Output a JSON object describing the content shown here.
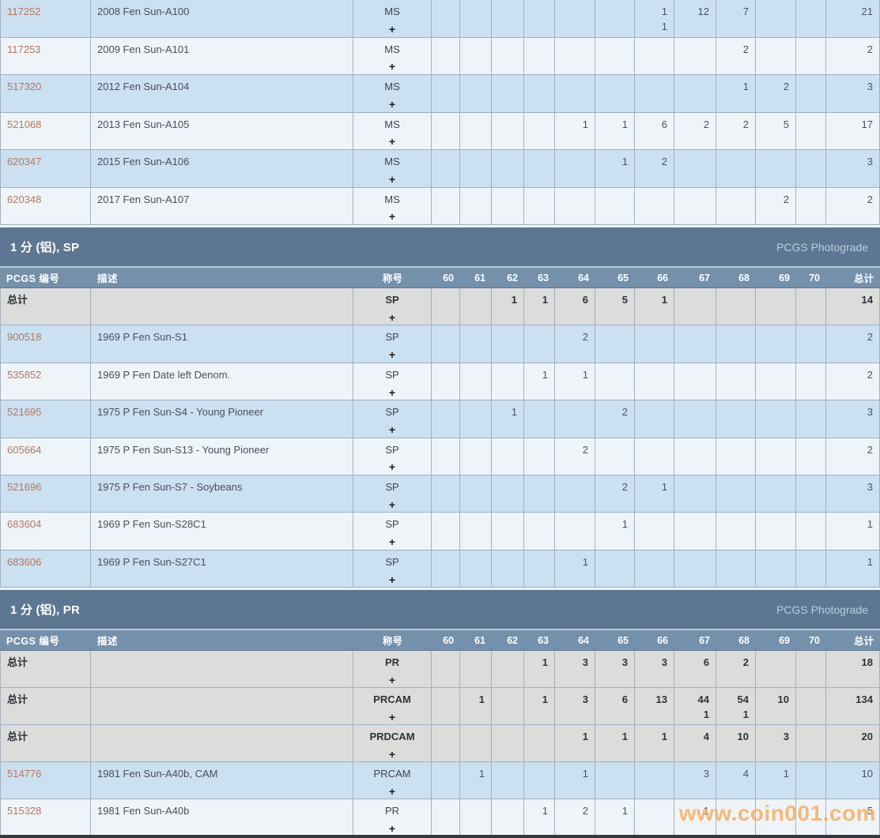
{
  "plus_symbol": "+",
  "watermark": "www.coin001.com",
  "colors": {
    "section_band": "#5d7691",
    "column_header": "#7590ab",
    "row_blue": "#cbe0f1",
    "row_white": "#eff4f9",
    "row_total": "#dcdcda",
    "pcgs_number_link": "#b5765f",
    "watermark_orange": "#f7ad62",
    "photograde_text": "#b9cfe4"
  },
  "table_header": {
    "id": "PCGS 编号",
    "desc": "描述",
    "designation": "称号",
    "grades": [
      "60",
      "61",
      "62",
      "63",
      "64",
      "65",
      "66",
      "67",
      "68",
      "69",
      "70"
    ],
    "total": "总计"
  },
  "sections": [
    {
      "kind": "continuation",
      "rows": [
        {
          "id": "117252",
          "desc": "2008 Fen Sun-A100",
          "designation": "MS",
          "grades": [
            "",
            "",
            "",
            "",
            "",
            "",
            "1\n1",
            "12",
            "7",
            "",
            ""
          ],
          "total": "21",
          "style": "blue"
        },
        {
          "id": "117253",
          "desc": "2009 Fen Sun-A101",
          "designation": "MS",
          "grades": [
            "",
            "",
            "",
            "",
            "",
            "",
            "",
            "",
            "2",
            "",
            ""
          ],
          "total": "2",
          "style": "white"
        },
        {
          "id": "517320",
          "desc": "2012 Fen Sun-A104",
          "designation": "MS",
          "grades": [
            "",
            "",
            "",
            "",
            "",
            "",
            "",
            "",
            "1",
            "2",
            ""
          ],
          "total": "3",
          "style": "blue"
        },
        {
          "id": "521068",
          "desc": "2013 Fen Sun-A105",
          "designation": "MS",
          "grades": [
            "",
            "",
            "",
            "",
            "1",
            "1",
            "6",
            "2",
            "2",
            "5",
            ""
          ],
          "total": "17",
          "style": "white"
        },
        {
          "id": "620347",
          "desc": "2015 Fen Sun-A106",
          "designation": "MS",
          "grades": [
            "",
            "",
            "",
            "",
            "",
            "1",
            "2",
            "",
            "",
            "",
            ""
          ],
          "total": "3",
          "style": "blue"
        },
        {
          "id": "620348",
          "desc": "2017 Fen Sun-A107",
          "designation": "MS",
          "grades": [
            "",
            "",
            "",
            "",
            "",
            "",
            "",
            "",
            "",
            "2",
            ""
          ],
          "total": "2",
          "style": "white"
        }
      ]
    },
    {
      "kind": "full",
      "title": "1 分 (铝), SP",
      "photograde": "PCGS Photograde",
      "rows": [
        {
          "id": "总计",
          "desc": "",
          "designation": "SP",
          "grades": [
            "",
            "",
            "1",
            "1",
            "6",
            "5",
            "1",
            "",
            "",
            "",
            ""
          ],
          "total": "14",
          "style": "total"
        },
        {
          "id": "900518",
          "desc": "1969 P Fen Sun-S1",
          "designation": "SP",
          "grades": [
            "",
            "",
            "",
            "",
            "2",
            "",
            "",
            "",
            "",
            "",
            ""
          ],
          "total": "2",
          "style": "blue"
        },
        {
          "id": "535852",
          "desc": "1969 P Fen Date left Denom.",
          "designation": "SP",
          "grades": [
            "",
            "",
            "",
            "1",
            "1",
            "",
            "",
            "",
            "",
            "",
            ""
          ],
          "total": "2",
          "style": "white"
        },
        {
          "id": "521695",
          "desc": "1975 P Fen Sun-S4 - Young Pioneer",
          "designation": "SP",
          "grades": [
            "",
            "",
            "1",
            "",
            "",
            "2",
            "",
            "",
            "",
            "",
            ""
          ],
          "total": "3",
          "style": "blue"
        },
        {
          "id": "605664",
          "desc": "1975 P Fen Sun-S13 - Young Pioneer",
          "designation": "SP",
          "grades": [
            "",
            "",
            "",
            "",
            "2",
            "",
            "",
            "",
            "",
            "",
            ""
          ],
          "total": "2",
          "style": "white"
        },
        {
          "id": "521696",
          "desc": "1975 P Fen Sun-S7 - Soybeans",
          "designation": "SP",
          "grades": [
            "",
            "",
            "",
            "",
            "",
            "2",
            "1",
            "",
            "",
            "",
            ""
          ],
          "total": "3",
          "style": "blue"
        },
        {
          "id": "683604",
          "desc": "1969 P Fen Sun-S28C1",
          "designation": "SP",
          "grades": [
            "",
            "",
            "",
            "",
            "",
            "1",
            "",
            "",
            "",
            "",
            ""
          ],
          "total": "1",
          "style": "white"
        },
        {
          "id": "683606",
          "desc": "1969 P Fen Sun-S27C1",
          "designation": "SP",
          "grades": [
            "",
            "",
            "",
            "",
            "1",
            "",
            "",
            "",
            "",
            "",
            ""
          ],
          "total": "1",
          "style": "blue"
        }
      ]
    },
    {
      "kind": "full",
      "title": "1 分 (铝), PR",
      "photograde": "PCGS Photograde",
      "rows": [
        {
          "id": "总计",
          "desc": "",
          "designation": "PR",
          "grades": [
            "",
            "",
            "",
            "1",
            "3",
            "3",
            "3",
            "6",
            "2",
            "",
            ""
          ],
          "total": "18",
          "style": "total"
        },
        {
          "id": "总计",
          "desc": "",
          "designation": "PRCAM",
          "grades": [
            "",
            "1",
            "",
            "1",
            "3",
            "6",
            "13",
            "44\n1",
            "54\n1",
            "10",
            ""
          ],
          "total": "134",
          "style": "total"
        },
        {
          "id": "总计",
          "desc": "",
          "designation": "PRDCAM",
          "grades": [
            "",
            "",
            "",
            "",
            "1",
            "1",
            "1",
            "4",
            "10",
            "3",
            ""
          ],
          "total": "20",
          "style": "total"
        },
        {
          "id": "514776",
          "desc": "1981 Fen Sun-A40b, CAM",
          "designation": "PRCAM",
          "grades": [
            "",
            "1",
            "",
            "",
            "1",
            "",
            "",
            "3",
            "4",
            "1",
            ""
          ],
          "total": "10",
          "style": "blue"
        },
        {
          "id": "515328",
          "desc": "1981 Fen Sun-A40b",
          "designation": "PR",
          "grades": [
            "",
            "",
            "",
            "1",
            "2",
            "1",
            "",
            "1",
            "",
            "",
            ""
          ],
          "total": "5",
          "style": "white"
        }
      ]
    }
  ]
}
